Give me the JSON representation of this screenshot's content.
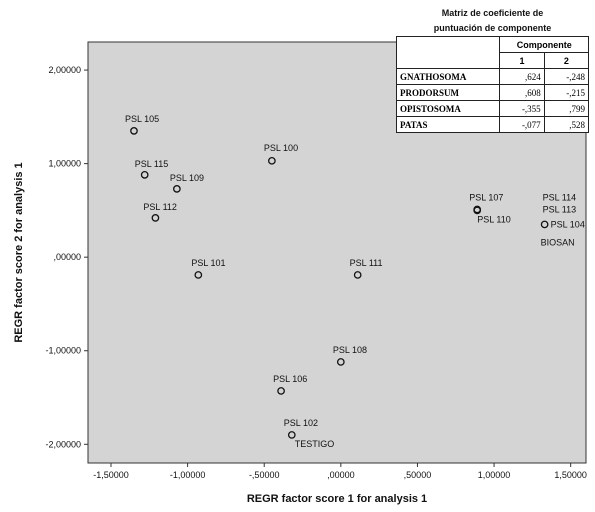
{
  "chart_data": {
    "type": "scatter",
    "title": "",
    "xlabel": "REGR factor score   1 for analysis 1",
    "ylabel": "REGR factor score   2 for analysis 1",
    "xlim": [
      -1.65,
      1.6
    ],
    "ylim": [
      -2.2,
      2.3
    ],
    "x_ticks": [
      -1.5,
      -1.0,
      -0.5,
      0.0,
      0.5,
      1.0,
      1.5
    ],
    "x_tick_labels": [
      "-1,50000",
      "-1,00000",
      "-,50000",
      ",00000",
      ",50000",
      "1,00000",
      "1,50000"
    ],
    "y_ticks": [
      2.0,
      1.0,
      0.0,
      -1.0,
      -2.0
    ],
    "y_tick_labels": [
      "2,00000",
      "1,00000",
      ",00000",
      "-1,00000",
      "-2,00000"
    ],
    "grid": false,
    "background": "#d4d4d4",
    "points": [
      {
        "label": "PSL 105",
        "x": -1.35,
        "y": 1.35
      },
      {
        "label": "PSL 115",
        "x": -1.28,
        "y": 0.88
      },
      {
        "label": "PSL 109",
        "x": -1.07,
        "y": 0.73
      },
      {
        "label": "PSL 112",
        "x": -1.21,
        "y": 0.42
      },
      {
        "label": "PSL 100",
        "x": -0.45,
        "y": 1.03
      },
      {
        "label": "PSL 101",
        "x": -0.93,
        "y": -0.19
      },
      {
        "label": "PSL 111",
        "x": 0.11,
        "y": -0.19
      },
      {
        "label": "PSL 107",
        "x": 0.89,
        "y": 0.51
      },
      {
        "label": "PSL 110",
        "x": 0.89,
        "y": 0.5
      },
      {
        "label": "PSL 114",
        "x": 1.33,
        "y": 0.35
      },
      {
        "label": "PSL 113",
        "x": 1.33,
        "y": 0.35
      },
      {
        "label": "PSL 104",
        "x": 1.33,
        "y": 0.35
      },
      {
        "label": "BIOSAN",
        "x": 1.33,
        "y": 0.35
      },
      {
        "label": "PSL 108",
        "x": 0.0,
        "y": -1.12
      },
      {
        "label": "PSL 106",
        "x": -0.39,
        "y": -1.43
      },
      {
        "label": "PSL 102",
        "x": -0.32,
        "y": -1.9
      },
      {
        "label": "TESTIGO",
        "x": -0.32,
        "y": -1.9
      }
    ]
  },
  "inset_table": {
    "title_line1": "Matriz de coeficiente de",
    "title_line2": "puntuación de componente",
    "header_group": "Componente",
    "col1": "1",
    "col2": "2",
    "rows": [
      {
        "label": "GNATHOSOMA",
        "c1": ",624",
        "c2": "-,248"
      },
      {
        "label": "PRODORSUM",
        "c1": ",608",
        "c2": "-,215"
      },
      {
        "label": "OPISTOSOMA",
        "c1": "-,355",
        "c2": ",799"
      },
      {
        "label": "PATAS",
        "c1": "-,077",
        "c2": ",528"
      }
    ]
  }
}
